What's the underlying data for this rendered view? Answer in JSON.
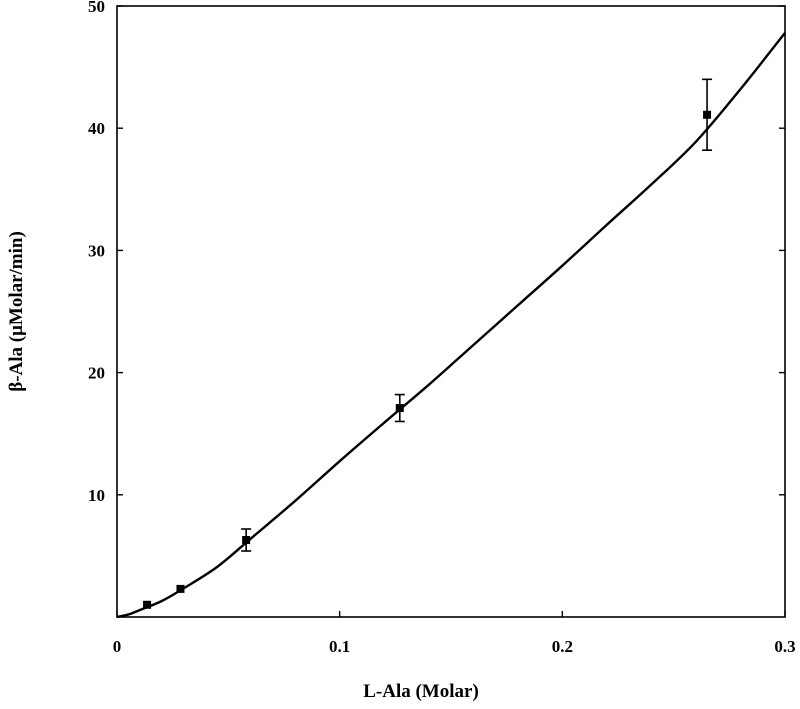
{
  "chart_data": {
    "type": "scatter",
    "title": "",
    "xlabel": "L-Ala  (Molar)",
    "ylabel": "β-Ala  (μMolar/min)",
    "xlim": [
      0,
      0.3
    ],
    "ylim": [
      0,
      50
    ],
    "x_ticks": [
      0,
      0.1,
      0.2,
      0.3
    ],
    "x_tick_labels": [
      "0",
      "0.1",
      "0.2",
      "0.3"
    ],
    "y_ticks": [
      10,
      20,
      30,
      40,
      50
    ],
    "y_tick_labels": [
      "10",
      "20",
      "30",
      "40",
      "50"
    ],
    "grid": false,
    "legend": "none",
    "colors": {
      "ink": "#000000",
      "background": "#ffffff"
    },
    "series": [
      {
        "kind": "points-with-error-bars",
        "marker": "square",
        "points": [
          {
            "x": 0.0135,
            "y": 1.0,
            "err": 0.0
          },
          {
            "x": 0.0285,
            "y": 2.3,
            "err": 0.0
          },
          {
            "x": 0.058,
            "y": 6.3,
            "err": 0.9
          },
          {
            "x": 0.127,
            "y": 17.1,
            "err": 1.1
          },
          {
            "x": 0.265,
            "y": 41.1,
            "err": 2.9
          }
        ]
      },
      {
        "kind": "fitted-curve",
        "x": [
          0,
          0.005,
          0.01,
          0.02,
          0.03,
          0.045,
          0.06,
          0.08,
          0.1,
          0.12,
          0.14,
          0.16,
          0.18,
          0.2,
          0.22,
          0.24,
          0.26,
          0.28,
          0.3
        ],
        "y": [
          0,
          0.2,
          0.55,
          1.3,
          2.35,
          4.1,
          6.4,
          9.5,
          12.75,
          15.9,
          19.0,
          22.25,
          25.5,
          28.75,
          32.1,
          35.4,
          38.9,
          43.2,
          47.8
        ]
      }
    ]
  }
}
